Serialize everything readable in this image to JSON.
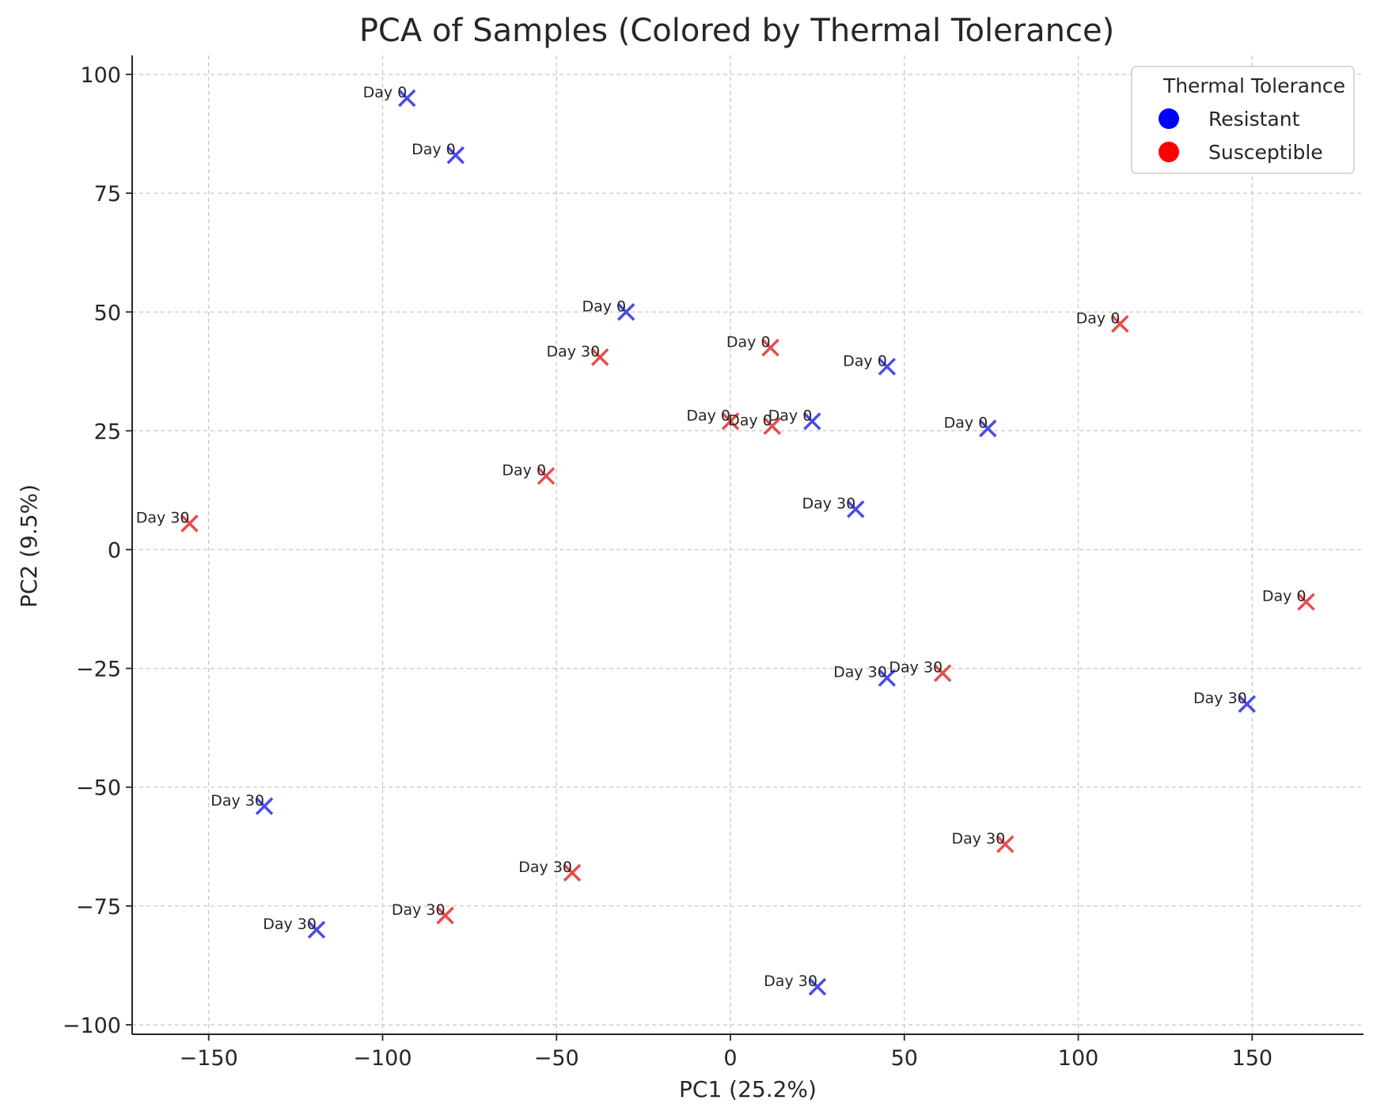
{
  "chart_data": {
    "type": "scatter",
    "title": "PCA of Samples (Colored by Thermal Tolerance)",
    "xlabel": "PC1 (25.2%)",
    "ylabel": "PC2 (9.5%)",
    "xlim": [
      -172,
      182
    ],
    "ylim": [
      -102,
      104
    ],
    "xticks": [
      -150,
      -100,
      -50,
      0,
      50,
      100,
      150
    ],
    "yticks": [
      -100,
      -75,
      -50,
      -25,
      0,
      25,
      50,
      75,
      100
    ],
    "xtick_labels": [
      "−150",
      "−100",
      "−50",
      "0",
      "50",
      "100",
      "150"
    ],
    "ytick_labels": [
      "−100",
      "−75",
      "−50",
      "−25",
      "0",
      "25",
      "50",
      "75",
      "100"
    ],
    "grid": true,
    "marker": "x",
    "legend": {
      "title": "Thermal Tolerance",
      "placement": "top-right",
      "entries": [
        {
          "label": "Resistant",
          "color": "#0000ff"
        },
        {
          "label": "Susceptible",
          "color": "#ff0000"
        }
      ]
    },
    "series": [
      {
        "name": "Resistant",
        "color": "#4b4bea",
        "points": [
          {
            "x": -93,
            "y": 95,
            "label": "Day 0"
          },
          {
            "x": -79,
            "y": 83,
            "label": "Day 0"
          },
          {
            "x": -30,
            "y": 50,
            "label": "Day 0"
          },
          {
            "x": 45,
            "y": 38.5,
            "label": "Day 0"
          },
          {
            "x": 23.5,
            "y": 27,
            "label": "Day 0"
          },
          {
            "x": 74,
            "y": 25.5,
            "label": "Day 0"
          },
          {
            "x": 36,
            "y": 8.5,
            "label": "Day 30"
          },
          {
            "x": 45,
            "y": -27,
            "label": "Day 30"
          },
          {
            "x": 148.5,
            "y": -32.5,
            "label": "Day 30"
          },
          {
            "x": -134,
            "y": -54,
            "label": "Day 30"
          },
          {
            "x": -119,
            "y": -80,
            "label": "Day 30"
          },
          {
            "x": 25,
            "y": -92,
            "label": "Day 30"
          }
        ]
      },
      {
        "name": "Susceptible",
        "color": "#ea4b4b",
        "points": [
          {
            "x": 112,
            "y": 47.5,
            "label": "Day 0"
          },
          {
            "x": 11.5,
            "y": 42.5,
            "label": "Day 0"
          },
          {
            "x": -37.5,
            "y": 40.5,
            "label": "Day 30"
          },
          {
            "x": 0,
            "y": 27,
            "label": "Day 0"
          },
          {
            "x": 12,
            "y": 26,
            "label": "Day 0"
          },
          {
            "x": -53,
            "y": 15.5,
            "label": "Day 0"
          },
          {
            "x": -155.5,
            "y": 5.5,
            "label": "Day 30"
          },
          {
            "x": 165.5,
            "y": -11,
            "label": "Day 0"
          },
          {
            "x": 61,
            "y": -26,
            "label": "Day 30"
          },
          {
            "x": 79,
            "y": -62,
            "label": "Day 30"
          },
          {
            "x": -45.5,
            "y": -68,
            "label": "Day 30"
          },
          {
            "x": -82,
            "y": -77,
            "label": "Day 30"
          }
        ]
      }
    ]
  }
}
